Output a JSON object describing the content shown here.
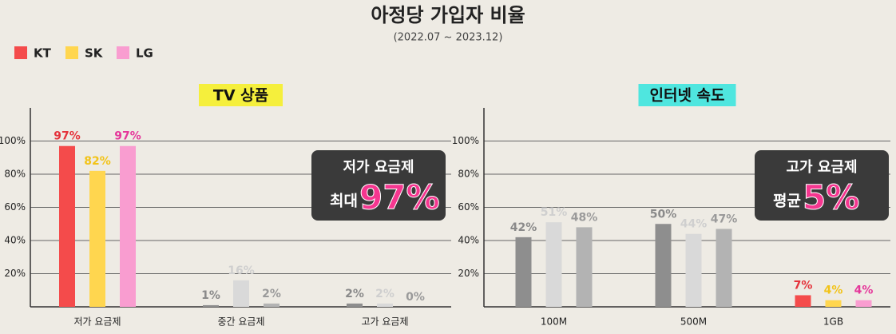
{
  "title": "아정당 가입자 비율",
  "subtitle": "(2022.07 ~ 2023.12)",
  "chart_data": [
    {
      "type": "bar",
      "title": "TV 상품",
      "title_color": "#f5ef3c",
      "categories": [
        "저가 요금제",
        "중간 요금제",
        "고가 요금제"
      ],
      "series": [
        {
          "name": "KT",
          "color": "#f44b4b",
          "colors": [
            "#f44b4b",
            "#8e8e8e",
            "#8e8e8e"
          ],
          "label_colors": [
            "#e5323b",
            "#8a8a8a",
            "#8a8a8a"
          ],
          "values": [
            97,
            1,
            2
          ],
          "value_labels": [
            "97%",
            "1%",
            "2%"
          ]
        },
        {
          "name": "SK",
          "color": "#ffd64f",
          "colors": [
            "#ffd64f",
            "#d9d9d9",
            "#d9d9d9"
          ],
          "label_colors": [
            "#f2c318",
            "#cfcfcf",
            "#cfcfcf"
          ],
          "values": [
            82,
            16,
            2
          ],
          "value_labels": [
            "82%",
            "16%",
            "2%"
          ]
        },
        {
          "name": "LG",
          "color": "#f99dd0",
          "colors": [
            "#f99dd0",
            "#b3b3b3",
            "#b3b3b3"
          ],
          "label_colors": [
            "#e5369a",
            "#9a9a9a",
            "#9a9a9a"
          ],
          "values": [
            97,
            2,
            0
          ],
          "value_labels": [
            "97%",
            "2%",
            "0%"
          ]
        }
      ],
      "ylim": [
        0,
        120
      ],
      "yticks": [
        {
          "value": 20,
          "label": "20%"
        },
        {
          "value": 40,
          "label": "40%"
        },
        {
          "value": 60,
          "label": "60%"
        },
        {
          "value": 80,
          "label": "80%"
        },
        {
          "value": 100,
          "label": "100%"
        }
      ],
      "grid": true,
      "annotation": {
        "title": "저가 요금제",
        "prefix": "최대",
        "value": "97%"
      }
    },
    {
      "type": "bar",
      "title": "인터넷 속도",
      "title_color": "#4fe6df",
      "categories": [
        "100M",
        "500M",
        "1GB"
      ],
      "series": [
        {
          "colors": [
            "#8e8e8e",
            "#8e8e8e",
            "#f44b4b"
          ],
          "label_colors": [
            "#8a8a8a",
            "#8a8a8a",
            "#e5323b"
          ],
          "values": [
            42,
            50,
            7
          ],
          "value_labels": [
            "42%",
            "50%",
            "7%"
          ]
        },
        {
          "colors": [
            "#d9d9d9",
            "#d9d9d9",
            "#ffd64f"
          ],
          "label_colors": [
            "#cfcfcf",
            "#cfcfcf",
            "#f2c318"
          ],
          "values": [
            51,
            44,
            4
          ],
          "value_labels": [
            "51%",
            "44%",
            "4%"
          ]
        },
        {
          "colors": [
            "#b3b3b3",
            "#b3b3b3",
            "#f99dd0"
          ],
          "label_colors": [
            "#9a9a9a",
            "#9a9a9a",
            "#e5369a"
          ],
          "values": [
            48,
            47,
            4
          ],
          "value_labels": [
            "48%",
            "47%",
            "4%"
          ]
        }
      ],
      "ylim": [
        0,
        120
      ],
      "yticks": [
        {
          "value": 20,
          "label": "20%"
        },
        {
          "value": 40,
          "label": "40%"
        },
        {
          "value": 60,
          "label": "60%"
        },
        {
          "value": 80,
          "label": "80%"
        },
        {
          "value": 100,
          "label": "100%"
        }
      ],
      "grid": true,
      "annotation": {
        "title": "고가 요금제",
        "prefix": "평균",
        "value": "5%"
      }
    }
  ]
}
